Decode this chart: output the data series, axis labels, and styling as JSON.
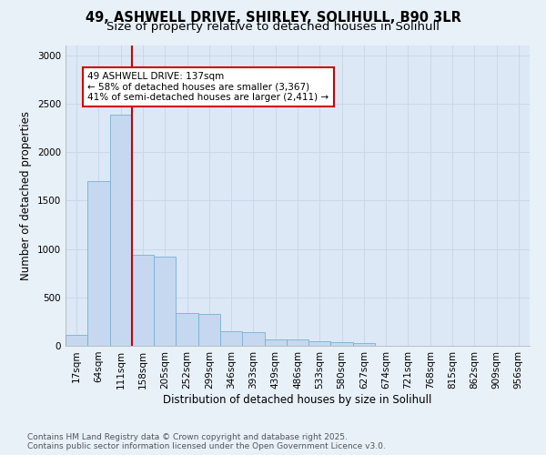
{
  "title_line1": "49, ASHWELL DRIVE, SHIRLEY, SOLIHULL, B90 3LR",
  "title_line2": "Size of property relative to detached houses in Solihull",
  "xlabel": "Distribution of detached houses by size in Solihull",
  "ylabel": "Number of detached properties",
  "categories": [
    "17sqm",
    "64sqm",
    "111sqm",
    "158sqm",
    "205sqm",
    "252sqm",
    "299sqm",
    "346sqm",
    "393sqm",
    "439sqm",
    "486sqm",
    "533sqm",
    "580sqm",
    "627sqm",
    "674sqm",
    "721sqm",
    "768sqm",
    "815sqm",
    "862sqm",
    "909sqm",
    "956sqm"
  ],
  "values": [
    115,
    1700,
    2390,
    940,
    920,
    340,
    330,
    155,
    145,
    70,
    65,
    45,
    40,
    30,
    0,
    0,
    0,
    0,
    0,
    0,
    0
  ],
  "bar_color": "#c5d8ef",
  "bar_edge_color": "#7bafd4",
  "vline_color": "#cc0000",
  "annotation_text": "49 ASHWELL DRIVE: 137sqm\n← 58% of detached houses are smaller (3,367)\n41% of semi-detached houses are larger (2,411) →",
  "annotation_box_color": "#ffffff",
  "annotation_box_edge": "#cc0000",
  "footer_text": "Contains HM Land Registry data © Crown copyright and database right 2025.\nContains public sector information licensed under the Open Government Licence v3.0.",
  "ylim": [
    0,
    3100
  ],
  "yticks": [
    0,
    500,
    1000,
    1500,
    2000,
    2500,
    3000
  ],
  "background_color": "#e8f0f8",
  "plot_bg_color": "#dce8f5",
  "grid_color": "#c8d8e8",
  "title1_fontsize": 10.5,
  "title2_fontsize": 9.5,
  "axis_label_fontsize": 8.5,
  "tick_fontsize": 7.5,
  "annotation_fontsize": 7.5,
  "footer_fontsize": 6.5
}
